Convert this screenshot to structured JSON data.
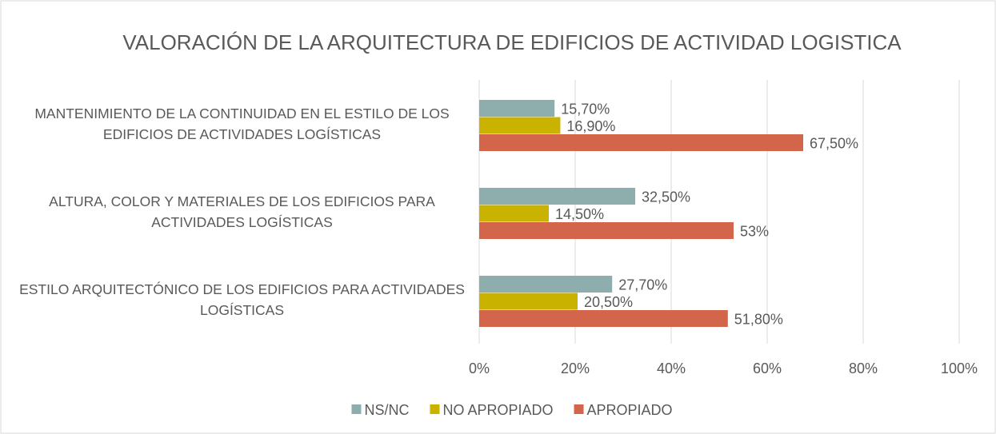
{
  "chart_data": {
    "type": "hbar",
    "title": "VALORACIÓN DE LA ARQUITECTURA DE EDIFICIOS DE ACTIVIDAD LOGISTICA",
    "categories": [
      "MANTENIMIENTO DE LA CONTINUIDAD EN EL ESTILO DE LOS EDIFICIOS DE ACTIVIDADES LOGÍSTICAS",
      "ALTURA, COLOR Y MATERIALES DE LOS EDIFICIOS PARA ACTIVIDADES LOGÍSTICAS",
      "ESTILO ARQUITECTÓNICO DE LOS EDIFICIOS PARA ACTIVIDADES LOGÍSTICAS"
    ],
    "series": [
      {
        "name": "NS/NC",
        "color": "#8eaeae",
        "values": [
          15.7,
          32.5,
          27.7
        ],
        "value_labels": [
          "15,70%",
          "32,50%",
          "27,70%"
        ]
      },
      {
        "name": "NO APROPIADO",
        "color": "#c9b200",
        "values": [
          16.9,
          14.5,
          20.5
        ],
        "value_labels": [
          "16,90%",
          "14,50%",
          "20,50%"
        ]
      },
      {
        "name": "APROPIADO",
        "color": "#d3654a",
        "values": [
          67.5,
          53,
          51.8
        ],
        "value_labels": [
          "67,50%",
          "53%",
          "51,80%"
        ]
      }
    ],
    "xlim": [
      0,
      100
    ],
    "xticks": [
      {
        "value": 0,
        "label": "0%"
      },
      {
        "value": 20,
        "label": "20%"
      },
      {
        "value": 40,
        "label": "40%"
      },
      {
        "value": 60,
        "label": "60%"
      },
      {
        "value": 80,
        "label": "80%"
      },
      {
        "value": 100,
        "label": "100%"
      }
    ],
    "grid": true,
    "legend": "bottom"
  }
}
